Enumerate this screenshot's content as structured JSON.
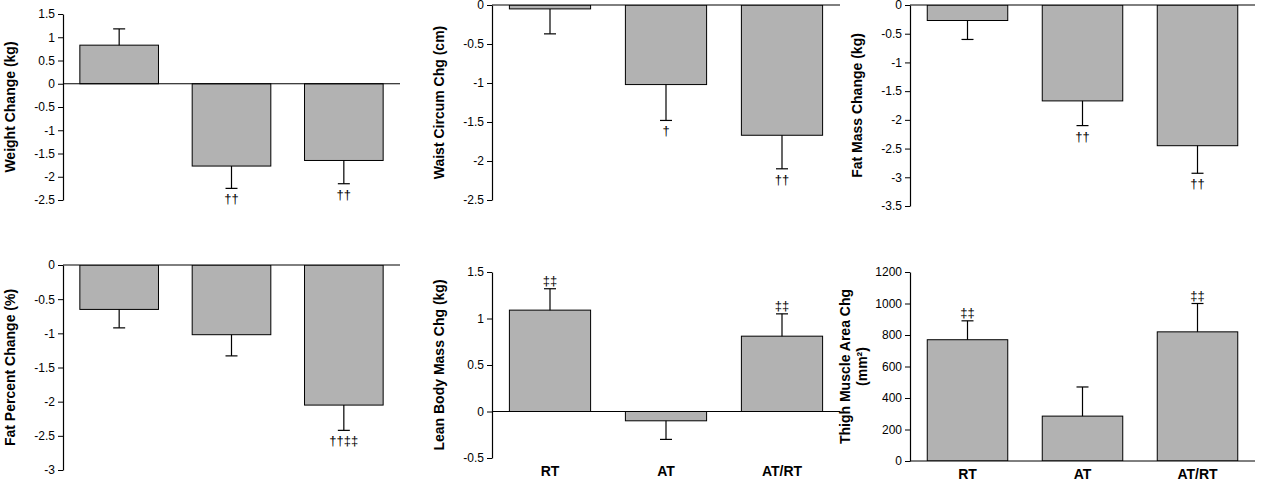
{
  "chart_data": [
    {
      "type": "bar",
      "y_label": "Weight Change (kg)",
      "categories": [
        null,
        null,
        null
      ],
      "values": [
        0.83,
        -1.77,
        -1.65
      ],
      "errors": [
        0.35,
        0.48,
        0.5
      ],
      "annotations": [
        null,
        "††",
        "††"
      ],
      "color": "#b2b2b2",
      "ylim": [
        -2.5,
        1.5
      ],
      "yticks": [
        -2.5,
        -2,
        -1.5,
        -1,
        -0.5,
        0,
        0.5,
        1,
        1.5
      ]
    },
    {
      "type": "bar",
      "y_label": "Waist Circum Chg (cm)",
      "categories": [
        null,
        null,
        null
      ],
      "values": [
        -0.05,
        -1.02,
        -1.67
      ],
      "errors": [
        0.32,
        0.46,
        0.43
      ],
      "annotations": [
        null,
        "†",
        "††"
      ],
      "color": "#b2b2b2",
      "ylim": [
        -2.5,
        0
      ],
      "yticks": [
        -2.5,
        -2,
        -1.5,
        -1,
        -0.5,
        0
      ]
    },
    {
      "type": "bar",
      "y_label": "Fat Mass Change (kg)",
      "categories": [
        null,
        null,
        null
      ],
      "values": [
        -0.27,
        -1.67,
        -2.45
      ],
      "errors": [
        0.33,
        0.43,
        0.48
      ],
      "annotations": [
        null,
        "††",
        "††"
      ],
      "color": "#b2b2b2",
      "ylim": [
        -3.5,
        0
      ],
      "yticks": [
        -3.5,
        -3,
        -2.5,
        -2,
        -1.5,
        -1,
        -0.5,
        0
      ]
    },
    {
      "type": "bar",
      "y_label": "Fat Percent Change (%)",
      "categories": [
        null,
        null,
        null
      ],
      "values": [
        -0.65,
        -1.02,
        -2.05
      ],
      "errors": [
        0.27,
        0.31,
        0.37
      ],
      "annotations": [
        null,
        null,
        "††‡‡"
      ],
      "color": "#b2b2b2",
      "ylim": [
        -3,
        0
      ],
      "yticks": [
        -3,
        -2.5,
        -2,
        -1.5,
        -1,
        -0.5,
        0
      ]
    },
    {
      "type": "bar",
      "y_label": "Lean Body Mass Chg (kg)",
      "categories": [
        "RT",
        "AT",
        "AT/RT"
      ],
      "values": [
        1.09,
        -0.1,
        0.81
      ],
      "errors": [
        0.23,
        0.2,
        0.24
      ],
      "annotations": [
        "‡‡",
        null,
        "‡‡"
      ],
      "color": "#b2b2b2",
      "ylim": [
        -0.5,
        1.5
      ],
      "yticks": [
        -0.5,
        0,
        0.5,
        1,
        1.5
      ]
    },
    {
      "type": "bar",
      "y_label": [
        "Thigh Muscle Area Chg",
        "(mm²)"
      ],
      "categories": [
        "RT",
        "AT",
        "AT/RT"
      ],
      "values": [
        770,
        285,
        820
      ],
      "errors": [
        120,
        185,
        180
      ],
      "annotations": [
        "‡‡",
        null,
        "‡‡"
      ],
      "color": "#b2b2b2",
      "ylim": [
        0,
        1200
      ],
      "yticks": [
        0,
        200,
        400,
        600,
        800,
        1000,
        1200
      ]
    }
  ]
}
